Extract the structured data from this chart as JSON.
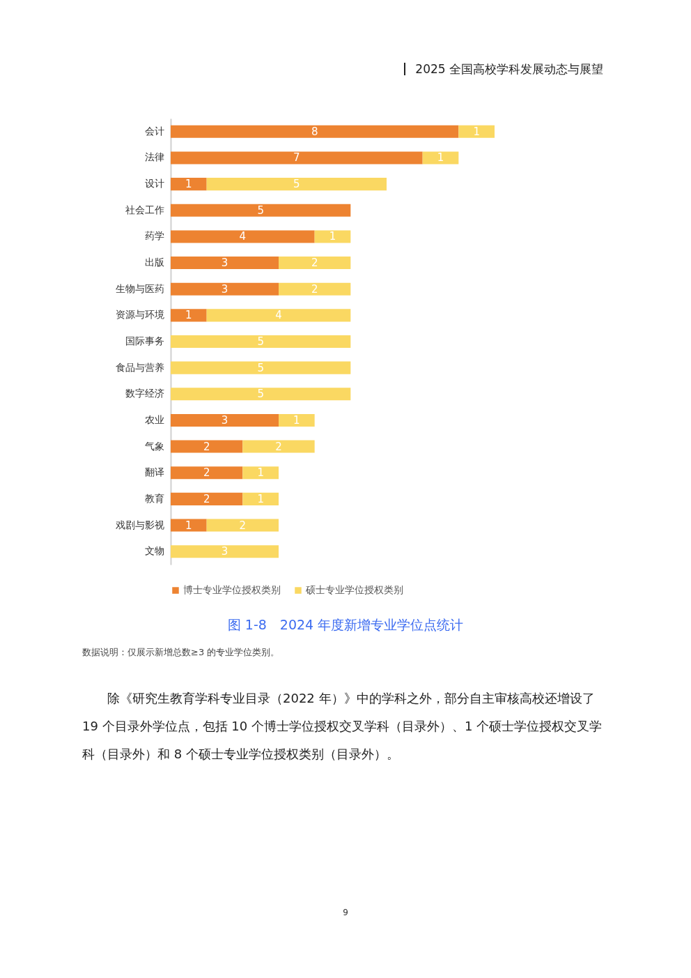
{
  "chart_data": {
    "type": "bar",
    "orientation": "horizontal",
    "stacked": true,
    "title": "图 1-8　2024 年度新增专业学位点统计",
    "categories": [
      "会计",
      "法律",
      "设计",
      "社会工作",
      "药学",
      "出版",
      "生物与医药",
      "资源与环境",
      "国际事务",
      "食品与营养",
      "数字经济",
      "农业",
      "气象",
      "翻译",
      "教育",
      "戏剧与影视",
      "文物"
    ],
    "series": [
      {
        "name": "博士专业学位授权类别",
        "color": "#ed8331",
        "values": [
          8,
          7,
          1,
          5,
          4,
          3,
          3,
          1,
          null,
          null,
          null,
          3,
          2,
          2,
          2,
          1,
          null
        ]
      },
      {
        "name": "硕士专业学位授权类别",
        "color": "#fad862",
        "values": [
          1,
          1,
          5,
          null,
          1,
          2,
          2,
          4,
          5,
          5,
          5,
          1,
          2,
          1,
          1,
          2,
          3
        ]
      }
    ],
    "data_labels": true,
    "legend": "bottom",
    "grid": false,
    "annotations": [
      "2025 全国高校学科发展动态与展望",
      "数据说明：仅展示新增总数≥3 的专业学位类别。",
      "除《研究生教育学科专业目录（2022 年）》中的学科之外，部分自主审核高校还增设了 19 个目录外学位点，包括 10 个博士学位授权交叉学科（目录外）、1 个硕士学位授权交叉学科（目录外）和 8 个硕士专业学位授权类别（目录外）。",
      "9"
    ]
  }
}
